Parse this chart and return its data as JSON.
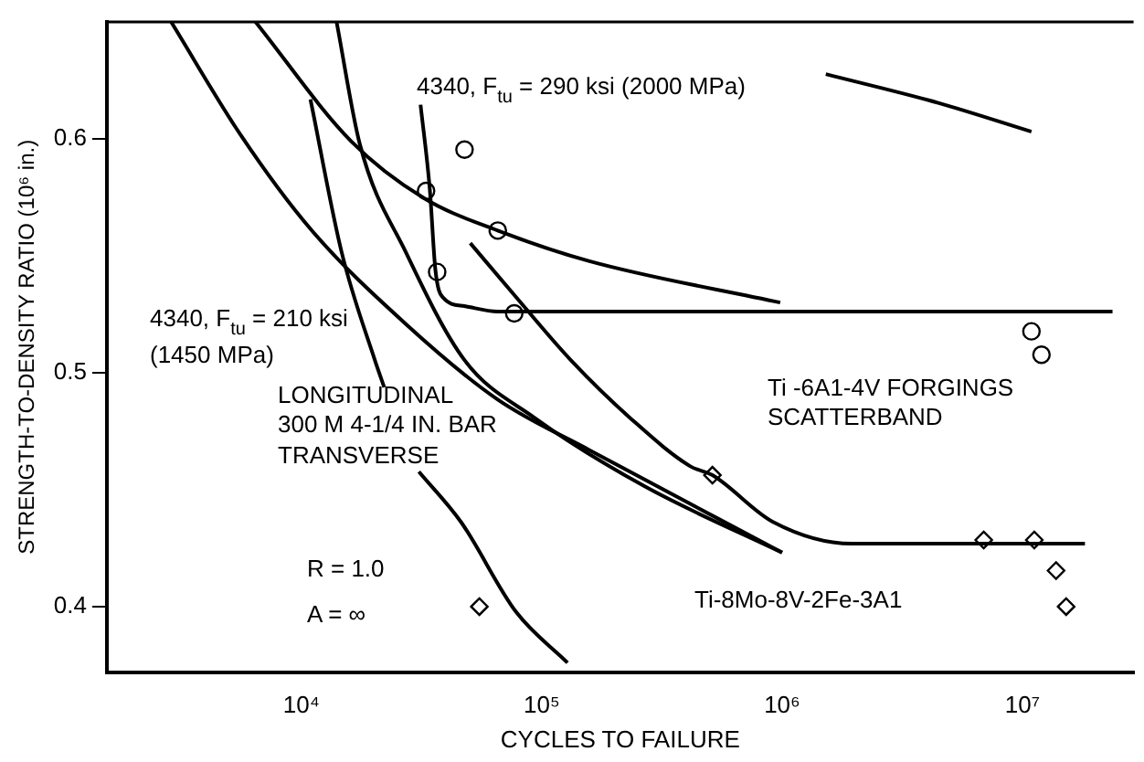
{
  "chart_data": {
    "type": "line",
    "xlabel": "CYCLES TO FAILURE",
    "ylabel": "STRENGTH-TO-DENSITY RATIO (10⁶ in.)",
    "log": "x",
    "xlim": [
      1550,
      29000000
    ],
    "xticks": [
      {
        "value": 10000,
        "label": "10⁴"
      },
      {
        "value": 100000,
        "label": "10⁵"
      },
      {
        "value": 1000000,
        "label": "10⁶"
      },
      {
        "value": 10000000,
        "label": "10⁷"
      }
    ],
    "ylim": [
      0.372,
      0.65
    ],
    "yticks": [
      0.4,
      0.5,
      0.6
    ],
    "grid": false,
    "legend": false,
    "line_style": "solid",
    "series": [
      {
        "color": "#000000",
        "marker": "none",
        "x": [
          2870,
          5600,
          10900,
          27200,
          65600,
          158000,
          1000000
        ],
        "values": [
          0.65,
          0.6015,
          0.5615,
          0.5208,
          0.4885,
          0.4669,
          0.4231
        ]
      },
      {
        "type": "line",
        "color": "#000000",
        "marker": "none",
        "x": [
          6440,
          16100,
          32400,
          65600,
          158000,
          982000
        ],
        "values": [
          0.65,
          0.599,
          0.5746,
          0.5608,
          0.5477,
          0.53
        ]
      },
      {
        "type": "line",
        "color": "#000000",
        "marker": "none",
        "x": [
          14000,
          17500,
          27200,
          47700,
          93100,
          267000,
          1000000
        ],
        "values": [
          0.65,
          0.5977,
          0.5515,
          0.5054,
          0.4808,
          0.4515,
          0.4231
        ]
      },
      {
        "type": "line",
        "color": "#000000",
        "marker": "none",
        "x": [
          50400,
          78200,
          132000,
          237000,
          415000,
          513000,
          916000,
          1950000,
          18200000
        ],
        "values": [
          0.5554,
          0.5323,
          0.5054,
          0.48,
          0.46,
          0.4562,
          0.4362,
          0.4269,
          0.4269
        ]
      },
      {
        "type": "line",
        "color": "#000000",
        "marker": "none",
        "x": [
          31300,
          34200,
          36100,
          38700,
          47700,
          65600,
          23700000
        ],
        "values": [
          0.6146,
          0.5785,
          0.5438,
          0.5323,
          0.5285,
          0.5262,
          0.5262
        ]
      },
      {
        "type": "line",
        "color": "#000000",
        "marker": "none",
        "x": [
          10900,
          14700,
          20200,
          22100
        ],
        "values": [
          0.6169,
          0.5515,
          0.5054,
          0.4938
        ]
      },
      {
        "type": "line",
        "color": "#000000",
        "marker": "none",
        "x": [
          30800,
          46100,
          78200,
          128000
        ],
        "values": [
          0.4577,
          0.4362,
          0.3977,
          0.376
        ]
      },
      {
        "type": "line",
        "color": "#000000",
        "marker": "none",
        "x": [
          1520000,
          4460000,
          10900000
        ],
        "values": [
          0.6277,
          0.6154,
          0.6031
        ]
      },
      {
        "type": "scatter",
        "color": "#000000",
        "marker": "circle",
        "x": [
          47700,
          33000,
          65600,
          36700,
          76800,
          10900000,
          12000000
        ],
        "values": [
          0.5954,
          0.5777,
          0.5608,
          0.5431,
          0.5254,
          0.5177,
          0.5077
        ]
      },
      {
        "type": "scatter",
        "color": "#000000",
        "marker": "diamond",
        "x": [
          513000,
          6900000,
          11200000,
          13800000,
          15200000,
          55000
        ],
        "values": [
          0.4562,
          0.4285,
          0.4285,
          0.4154,
          0.4,
          0.4
        ]
      }
    ],
    "annotations": [
      "4340, F$_{tu}$ = 290 ksi (2000 MPa)",
      "4340, F$_{tu}$ = 210 ksi",
      "(1450 MPa)",
      "LONGITUDINAL",
      "300 M 4-1/4 IN. BAR",
      "TRANSVERSE",
      "Ti -6A1-4V FORGINGS",
      "SCATTERBAND",
      "Ti-8Mo-8V-2Fe-3A1",
      "R = 1.0",
      "A = ∞"
    ]
  }
}
